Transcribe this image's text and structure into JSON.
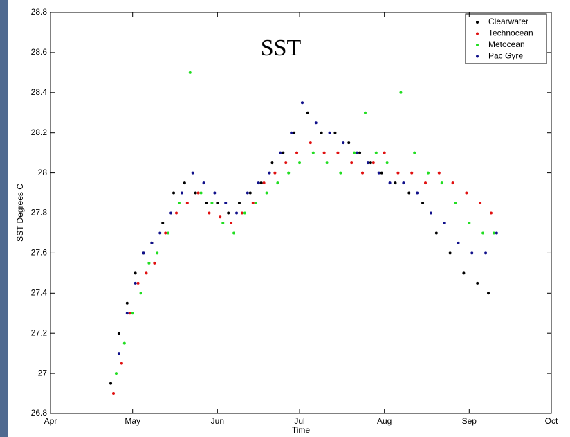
{
  "chart_data": {
    "type": "scatter",
    "title": "SST",
    "x_label": "Time",
    "y_label": "SST Degrees C",
    "xlim": [
      0,
      183
    ],
    "xticks": [
      {
        "value": 0,
        "label": "Apr"
      },
      {
        "value": 30,
        "label": "May"
      },
      {
        "value": 61,
        "label": "Jun"
      },
      {
        "value": 91,
        "label": "Jul"
      },
      {
        "value": 122,
        "label": "Aug"
      },
      {
        "value": 153,
        "label": "Sep"
      },
      {
        "value": 183,
        "label": "Oct"
      }
    ],
    "ylim": [
      26.8,
      28.8
    ],
    "yticks": [
      26.8,
      27,
      27.2,
      27.4,
      27.6,
      27.8,
      28,
      28.2,
      28.4,
      28.6,
      28.8
    ],
    "legend": "upper right",
    "series": [
      {
        "name": "Clearwater",
        "color": "#000000",
        "x": [
          22,
          25,
          28,
          31,
          34,
          37,
          41,
          45,
          49,
          53,
          57,
          61,
          65,
          69,
          73,
          77,
          81,
          85,
          89,
          94,
          99,
          104,
          109,
          113,
          117,
          121,
          126,
          131,
          136,
          141,
          146,
          151,
          156,
          160
        ],
        "values": [
          26.95,
          27.2,
          27.35,
          27.5,
          27.6,
          27.65,
          27.75,
          27.9,
          27.95,
          27.9,
          27.85,
          27.85,
          27.8,
          27.85,
          27.9,
          27.95,
          28.05,
          28.1,
          28.2,
          28.3,
          28.2,
          28.2,
          28.15,
          28.1,
          28.05,
          28.0,
          27.95,
          27.9,
          27.85,
          27.7,
          27.6,
          27.5,
          27.45,
          27.4
        ]
      },
      {
        "name": "Technocean",
        "color": "#e01010",
        "x": [
          23,
          26,
          29,
          32,
          35,
          38,
          42,
          46,
          50,
          54,
          58,
          62,
          66,
          70,
          74,
          78,
          82,
          86,
          90,
          95,
          100,
          105,
          110,
          114,
          118,
          122,
          127,
          132,
          137,
          142,
          147,
          152,
          157,
          161
        ],
        "values": [
          26.9,
          27.05,
          27.3,
          27.45,
          27.5,
          27.55,
          27.7,
          27.8,
          27.85,
          27.9,
          27.8,
          27.78,
          27.75,
          27.8,
          27.85,
          27.95,
          28.0,
          28.05,
          28.1,
          28.15,
          28.1,
          28.1,
          28.05,
          28.0,
          28.05,
          28.1,
          28.0,
          28.0,
          27.95,
          28.0,
          27.95,
          27.9,
          27.85,
          27.8
        ]
      },
      {
        "name": "Metocean",
        "color": "#22dd22",
        "x": [
          24,
          27,
          30,
          33,
          36,
          39,
          43,
          47,
          51,
          55,
          59,
          63,
          67,
          71,
          75,
          79,
          83,
          87,
          91,
          96,
          101,
          106,
          111,
          115,
          119,
          123,
          128,
          133,
          138,
          143,
          148,
          153,
          158,
          162
        ],
        "values": [
          27.0,
          27.15,
          27.3,
          27.4,
          27.55,
          27.6,
          27.7,
          27.85,
          28.5,
          27.9,
          27.85,
          27.75,
          27.7,
          27.8,
          27.85,
          27.9,
          27.95,
          28.0,
          28.05,
          28.1,
          28.05,
          28.0,
          28.1,
          28.3,
          28.1,
          28.05,
          28.4,
          28.1,
          28.0,
          27.95,
          27.85,
          27.75,
          27.7,
          27.7
        ]
      },
      {
        "name": "Pac Gyre",
        "color": "#10108a",
        "x": [
          25,
          28,
          31,
          34,
          37,
          40,
          44,
          48,
          52,
          56,
          60,
          64,
          68,
          72,
          76,
          80,
          84,
          88,
          92,
          97,
          102,
          107,
          112,
          116,
          120,
          124,
          129,
          134,
          139,
          144,
          149,
          154,
          159,
          163
        ],
        "values": [
          27.1,
          27.3,
          27.45,
          27.6,
          27.65,
          27.7,
          27.8,
          27.9,
          28.0,
          27.95,
          27.9,
          27.85,
          27.8,
          27.9,
          27.95,
          28.0,
          28.1,
          28.2,
          28.35,
          28.25,
          28.2,
          28.15,
          28.1,
          28.05,
          28.0,
          27.95,
          27.95,
          27.9,
          27.8,
          27.75,
          27.65,
          27.6,
          27.6,
          27.7
        ]
      }
    ]
  }
}
